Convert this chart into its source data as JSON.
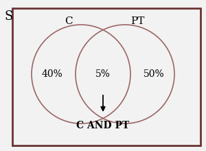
{
  "background_color": "#f2f2f2",
  "border_color": "#6b3333",
  "circle_color": "#9b6666",
  "circle_linewidth": 1.2,
  "left_label": "C",
  "right_label": "PT",
  "universe_label": "S",
  "left_value": "40%",
  "center_value": "5%",
  "right_value": "50%",
  "arrow_label": "C AND PT",
  "fontsize_labels": 11,
  "fontsize_values": 10,
  "fontsize_universe": 13,
  "fontsize_arrow_label": 10
}
